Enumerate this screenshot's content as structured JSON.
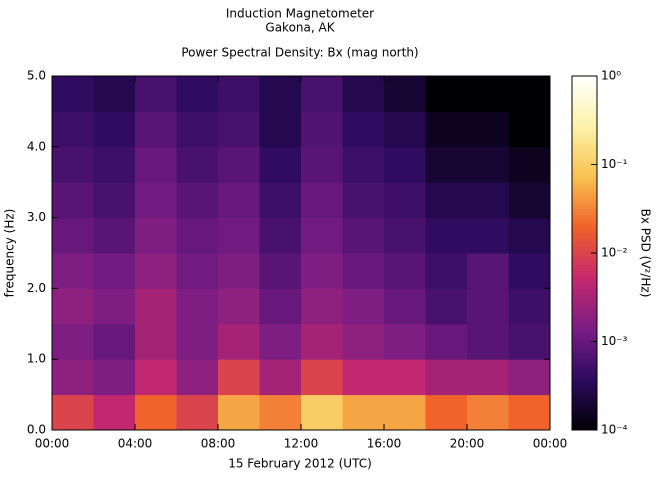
{
  "chart_data": {
    "type": "heatmap",
    "title": "Induction Magnetometer",
    "subtitle": "Gakona, AK",
    "plot_title": "Power Spectral Density: Bx (mag north)",
    "xlabel": "15 February 2012 (UTC)",
    "ylabel": "frequency (Hz)",
    "colorbar_label": "Bx PSD (V²/Hz)",
    "x_bins": [
      0,
      2,
      4,
      6,
      8,
      10,
      12,
      14,
      16,
      18,
      20,
      22,
      24
    ],
    "y_bins": [
      0,
      0.5,
      1,
      1.5,
      2,
      2.5,
      3,
      3.5,
      4,
      4.5,
      5
    ],
    "z": [
      [
        0.01,
        0.005,
        0.02,
        0.01,
        0.05,
        0.03,
        0.1,
        0.05,
        0.05,
        0.02,
        0.03,
        0.02
      ],
      [
        0.002,
        0.0015,
        0.005,
        0.002,
        0.01,
        0.003,
        0.01,
        0.005,
        0.005,
        0.003,
        0.003,
        0.002
      ],
      [
        0.0015,
        0.001,
        0.003,
        0.0015,
        0.003,
        0.0015,
        0.003,
        0.002,
        0.0015,
        0.001,
        0.0008,
        0.0006
      ],
      [
        0.002,
        0.0015,
        0.003,
        0.0015,
        0.002,
        0.001,
        0.002,
        0.0015,
        0.001,
        0.0006,
        0.0008,
        0.0005
      ],
      [
        0.0015,
        0.0012,
        0.002,
        0.0012,
        0.0015,
        0.0008,
        0.0015,
        0.001,
        0.0008,
        0.0005,
        0.0008,
        0.0004
      ],
      [
        0.001,
        0.0008,
        0.0015,
        0.001,
        0.0012,
        0.0006,
        0.0012,
        0.0008,
        0.0006,
        0.0004,
        0.0004,
        0.0003
      ],
      [
        0.0008,
        0.0006,
        0.0012,
        0.0008,
        0.001,
        0.0005,
        0.001,
        0.0006,
        0.0005,
        0.0003,
        0.0003,
        0.0002
      ],
      [
        0.0006,
        0.0005,
        0.001,
        0.0006,
        0.0008,
        0.0004,
        0.0008,
        0.0005,
        0.0004,
        0.0002,
        0.0002,
        0.00015
      ],
      [
        0.0005,
        0.0004,
        0.0008,
        0.0005,
        0.0006,
        0.0003,
        0.0007,
        0.0004,
        0.0003,
        0.00015,
        0.00015,
        0.0001
      ],
      [
        0.0004,
        0.0003,
        0.0006,
        0.0004,
        0.0005,
        0.0003,
        0.0006,
        0.0003,
        0.0002,
        0.0001,
        0.0001,
        0.0001
      ]
    ],
    "xlim": [
      0,
      24
    ],
    "xticks": [
      {
        "value": 0,
        "label": "00:00"
      },
      {
        "value": 4,
        "label": "04:00"
      },
      {
        "value": 8,
        "label": "08:00"
      },
      {
        "value": 12,
        "label": "12:00"
      },
      {
        "value": 16,
        "label": "16:00"
      },
      {
        "value": 20,
        "label": "20:00"
      },
      {
        "value": 24,
        "label": "00:00"
      }
    ],
    "ylim": [
      0,
      5
    ],
    "yticks": [
      {
        "value": 0,
        "label": "0.0"
      },
      {
        "value": 1,
        "label": "1.0"
      },
      {
        "value": 2,
        "label": "2.0"
      },
      {
        "value": 3,
        "label": "3.0"
      },
      {
        "value": 4,
        "label": "4.0"
      },
      {
        "value": 5,
        "label": "5.0"
      }
    ],
    "clim": [
      0.0001,
      1
    ],
    "color_scale": "log",
    "cticks": [
      {
        "value": 1,
        "label": "10⁰"
      },
      {
        "value": 0.1,
        "label": "10⁻¹"
      },
      {
        "value": 0.01,
        "label": "10⁻²"
      },
      {
        "value": 0.001,
        "label": "10⁻³"
      },
      {
        "value": 0.0001,
        "label": "10⁻⁴"
      }
    ],
    "colormap": [
      "#000004",
      "#2c0b5e",
      "#7a1d84",
      "#c4286e",
      "#f0602a",
      "#f8c050",
      "#fcf2a8",
      "#ffffff"
    ]
  }
}
